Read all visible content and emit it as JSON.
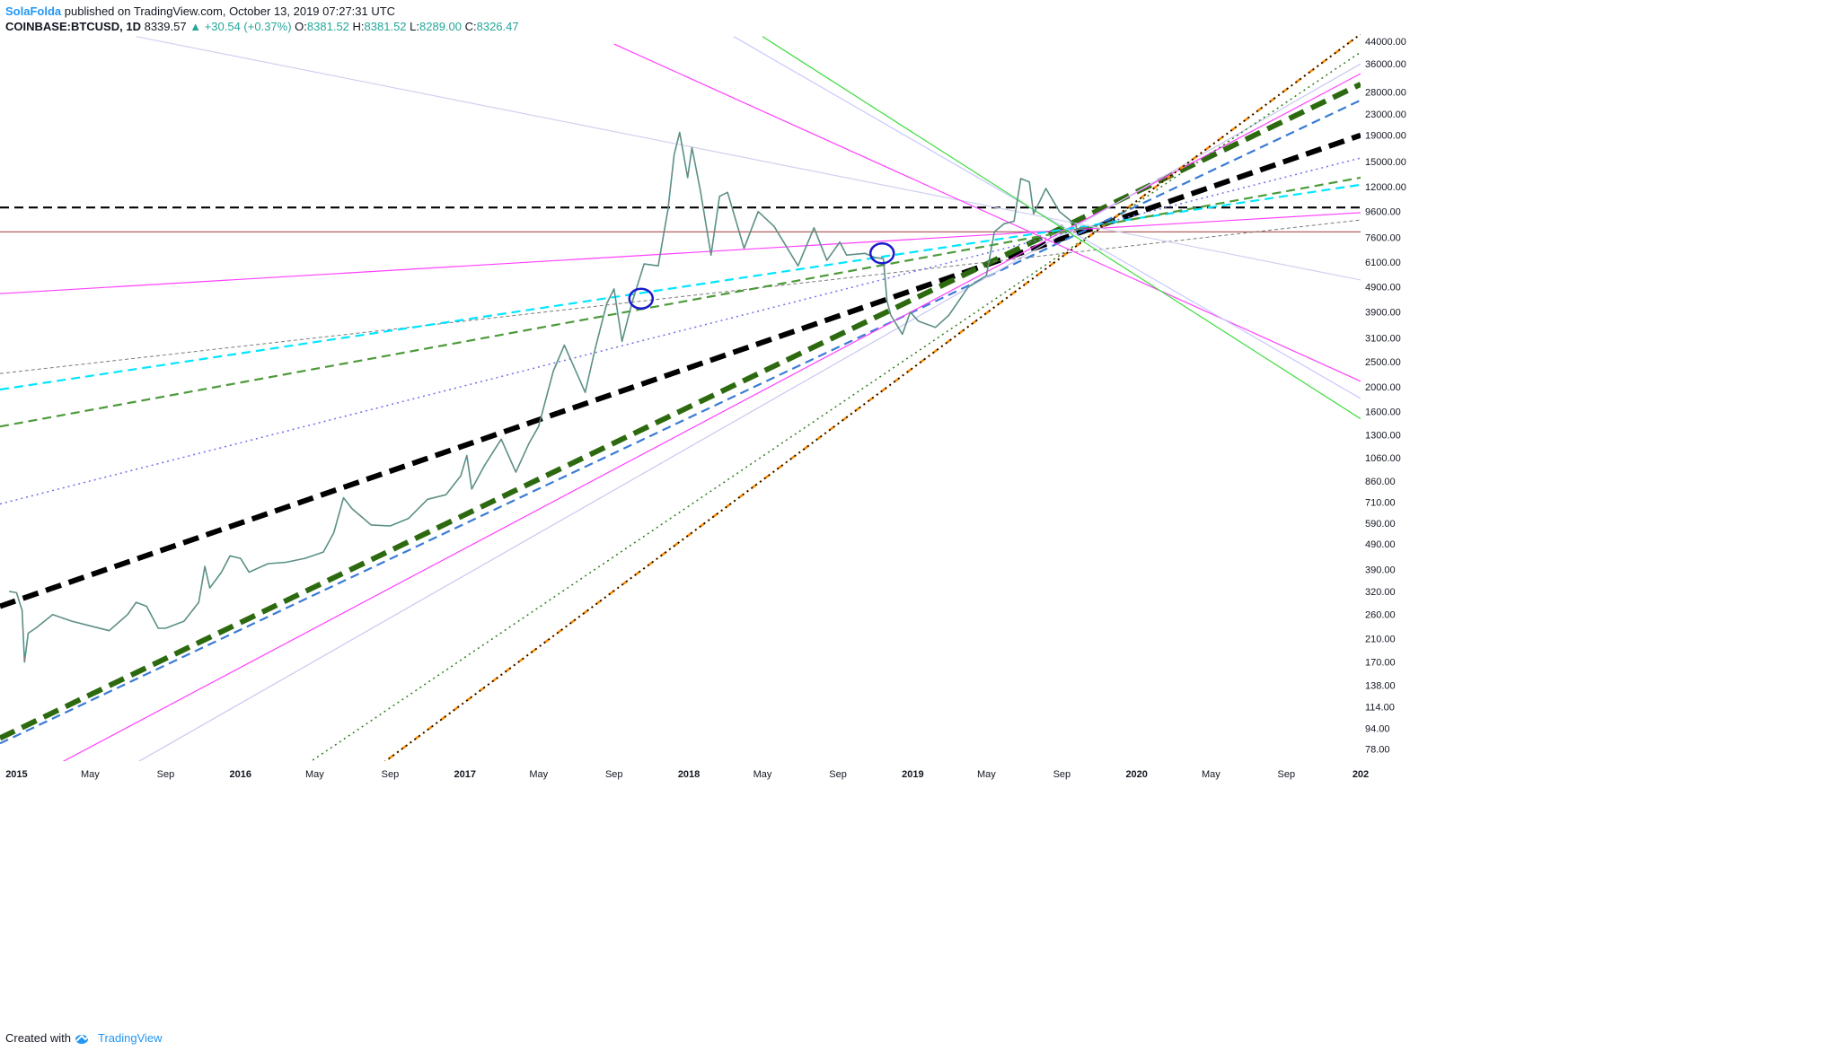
{
  "header": {
    "author": "SolaFolda",
    "published": "published on TradingView.com, October 13, 2019 07:27:31 UTC",
    "symbol": "COINBASE:BTCUSD, 1D",
    "price": "8339.57",
    "change": "▲ +30.54 (+0.37%)",
    "o_label": "O:",
    "o_val": "8381.52",
    "h_label": "H:",
    "h_val": "8381.52",
    "l_label": "L:",
    "l_val": "8289.00",
    "c_label": "C:",
    "c_val": "8326.47"
  },
  "footer": {
    "created_with": "Created with",
    "brand": "TradingView"
  },
  "chart_data": {
    "type": "line",
    "title": "",
    "y_scale": "log",
    "ylim": [
      70,
      47000
    ],
    "xlim": [
      "2014-12-05",
      "2020-12-31"
    ],
    "y_ticks": [
      "44000.00",
      "36000.00",
      "28000.00",
      "23000.00",
      "19000.00",
      "15000.00",
      "12000.00",
      "9600.00",
      "7600.00",
      "6100.00",
      "4900.00",
      "3900.00",
      "3100.00",
      "2500.00",
      "2000.00",
      "1600.00",
      "1300.00",
      "1060.00",
      "860.00",
      "710.00",
      "590.00",
      "490.00",
      "390.00",
      "320.00",
      "260.00",
      "210.00",
      "170.00",
      "138.00",
      "114.00",
      "94.00",
      "78.00"
    ],
    "x_ticks": [
      {
        "label": "2015",
        "date": "2015-01-01",
        "bold": true
      },
      {
        "label": "May",
        "date": "2015-05-01",
        "bold": false
      },
      {
        "label": "Sep",
        "date": "2015-09-01",
        "bold": false
      },
      {
        "label": "2016",
        "date": "2016-01-01",
        "bold": true
      },
      {
        "label": "May",
        "date": "2016-05-01",
        "bold": false
      },
      {
        "label": "Sep",
        "date": "2016-09-01",
        "bold": false
      },
      {
        "label": "2017",
        "date": "2017-01-01",
        "bold": true
      },
      {
        "label": "May",
        "date": "2017-05-01",
        "bold": false
      },
      {
        "label": "Sep",
        "date": "2017-09-01",
        "bold": false
      },
      {
        "label": "2018",
        "date": "2018-01-01",
        "bold": true
      },
      {
        "label": "May",
        "date": "2018-05-01",
        "bold": false
      },
      {
        "label": "Sep",
        "date": "2018-09-01",
        "bold": false
      },
      {
        "label": "2019",
        "date": "2019-01-01",
        "bold": true
      },
      {
        "label": "May",
        "date": "2019-05-01",
        "bold": false
      },
      {
        "label": "Sep",
        "date": "2019-09-01",
        "bold": false
      },
      {
        "label": "2020",
        "date": "2020-01-01",
        "bold": true
      },
      {
        "label": "May",
        "date": "2020-05-01",
        "bold": false
      },
      {
        "label": "Sep",
        "date": "2020-09-01",
        "bold": false
      },
      {
        "label": "202",
        "date": "2020-12-31",
        "bold": true
      }
    ],
    "series": [
      {
        "color": "#26a69a",
        "points": [
          [
            "2014-12-20",
            320
          ],
          [
            "2015-01-01",
            316
          ],
          [
            "2015-01-10",
            270
          ],
          [
            "2015-01-14",
            170
          ],
          [
            "2015-01-20",
            220
          ],
          [
            "2015-02-01",
            230
          ],
          [
            "2015-03-01",
            260
          ],
          [
            "2015-04-01",
            245
          ],
          [
            "2015-05-01",
            235
          ],
          [
            "2015-06-01",
            225
          ],
          [
            "2015-07-01",
            260
          ],
          [
            "2015-07-15",
            290
          ],
          [
            "2015-08-01",
            280
          ],
          [
            "2015-08-20",
            230
          ],
          [
            "2015-09-01",
            230
          ],
          [
            "2015-10-01",
            245
          ],
          [
            "2015-10-25",
            290
          ],
          [
            "2015-11-04",
            400
          ],
          [
            "2015-11-12",
            330
          ],
          [
            "2015-12-01",
            380
          ],
          [
            "2015-12-15",
            440
          ],
          [
            "2016-01-01",
            430
          ],
          [
            "2016-01-15",
            380
          ],
          [
            "2016-02-15",
            410
          ],
          [
            "2016-03-15",
            415
          ],
          [
            "2016-04-15",
            430
          ],
          [
            "2016-05-15",
            455
          ],
          [
            "2016-06-01",
            540
          ],
          [
            "2016-06-17",
            740
          ],
          [
            "2016-07-01",
            670
          ],
          [
            "2016-08-01",
            580
          ],
          [
            "2016-09-01",
            575
          ],
          [
            "2016-10-01",
            615
          ],
          [
            "2016-11-01",
            730
          ],
          [
            "2016-12-01",
            760
          ],
          [
            "2016-12-25",
            900
          ],
          [
            "2017-01-04",
            1080
          ],
          [
            "2017-01-12",
            800
          ],
          [
            "2017-02-01",
            980
          ],
          [
            "2017-03-01",
            1250
          ],
          [
            "2017-03-25",
            930
          ],
          [
            "2017-04-15",
            1200
          ],
          [
            "2017-05-01",
            1400
          ],
          [
            "2017-05-25",
            2300
          ],
          [
            "2017-06-12",
            2900
          ],
          [
            "2017-07-16",
            1900
          ],
          [
            "2017-08-01",
            2800
          ],
          [
            "2017-08-20",
            4200
          ],
          [
            "2017-09-01",
            4800
          ],
          [
            "2017-09-14",
            3000
          ],
          [
            "2017-10-01",
            4300
          ],
          [
            "2017-10-20",
            6000
          ],
          [
            "2017-11-12",
            5900
          ],
          [
            "2017-11-28",
            9800
          ],
          [
            "2017-12-08",
            16000
          ],
          [
            "2017-12-17",
            19500
          ],
          [
            "2017-12-30",
            13000
          ],
          [
            "2018-01-06",
            17000
          ],
          [
            "2018-01-20",
            11500
          ],
          [
            "2018-02-06",
            6500
          ],
          [
            "2018-02-20",
            11000
          ],
          [
            "2018-03-05",
            11400
          ],
          [
            "2018-04-01",
            6900
          ],
          [
            "2018-04-24",
            9600
          ],
          [
            "2018-05-20",
            8400
          ],
          [
            "2018-06-28",
            5900
          ],
          [
            "2018-07-24",
            8300
          ],
          [
            "2018-08-14",
            6200
          ],
          [
            "2018-09-04",
            7300
          ],
          [
            "2018-09-15",
            6500
          ],
          [
            "2018-10-15",
            6600
          ],
          [
            "2018-11-01",
            6350
          ],
          [
            "2018-11-14",
            6300
          ],
          [
            "2018-11-20",
            4300
          ],
          [
            "2018-11-26",
            3800
          ],
          [
            "2018-12-15",
            3200
          ],
          [
            "2018-12-28",
            3900
          ],
          [
            "2019-01-10",
            3600
          ],
          [
            "2019-02-07",
            3400
          ],
          [
            "2019-03-01",
            3800
          ],
          [
            "2019-04-02",
            4900
          ],
          [
            "2019-05-01",
            5400
          ],
          [
            "2019-05-14",
            8000
          ],
          [
            "2019-05-30",
            8600
          ],
          [
            "2019-06-15",
            8800
          ],
          [
            "2019-06-26",
            12900
          ],
          [
            "2019-07-10",
            12500
          ],
          [
            "2019-07-17",
            9400
          ],
          [
            "2019-08-06",
            11800
          ],
          [
            "2019-08-28",
            9600
          ],
          [
            "2019-09-24",
            8500
          ],
          [
            "2019-09-25",
            8200
          ],
          [
            "2019-10-01",
            8300
          ],
          [
            "2019-10-13",
            8330
          ]
        ]
      }
    ],
    "horizontal_lines": [
      {
        "y": 9950,
        "color": "#000000",
        "style": "dashed"
      },
      {
        "y": 8000,
        "color": "#b45f5f",
        "style": "solid"
      }
    ],
    "converging_point": {
      "x": "2019-10-13",
      "y": 8330
    },
    "trendlines": [
      {
        "color": "#000000",
        "style": "dashed-heavy",
        "from": {
          "x": "2014-12-05",
          "y": 280
        },
        "to": {
          "x": "2020-12-31",
          "y": 19000
        }
      },
      {
        "color": "#2d6a0f",
        "style": "dashed-heavy",
        "from": {
          "x": "2014-12-05",
          "y": 86
        },
        "to": {
          "x": "2020-12-31",
          "y": 30000
        }
      },
      {
        "color": "#3a7bd5",
        "style": "dashed",
        "from": {
          "x": "2014-12-05",
          "y": 82
        },
        "to": {
          "x": "2020-12-31",
          "y": 26000
        }
      },
      {
        "color": "#ff40ff",
        "style": "solid",
        "from": {
          "x": "2015-01-25",
          "y": 60
        },
        "to": {
          "x": "2020-12-31",
          "y": 33000
        }
      },
      {
        "color": "#c8c8f0",
        "style": "solid",
        "from": {
          "x": "2015-06-01",
          "y": 60
        },
        "to": {
          "x": "2020-12-31",
          "y": 36000
        }
      },
      {
        "color": "#2e7d1e",
        "style": "dotted",
        "from": {
          "x": "2016-03-15",
          "y": 60
        },
        "to": {
          "x": "2020-12-31",
          "y": 40000
        }
      },
      {
        "color": "#ff8c00",
        "style": "dash-dot",
        "from": {
          "x": "2016-07-18",
          "y": 60
        },
        "to": {
          "x": "2020-12-31",
          "y": 47000
        }
      },
      {
        "color": "#000000",
        "style": "dotted",
        "from": {
          "x": "2016-07-18",
          "y": 60
        },
        "to": {
          "x": "2020-12-31",
          "y": 47000
        }
      },
      {
        "color": "#ff40ff",
        "style": "solid",
        "from": {
          "x": "2014-12-05",
          "y": 4600
        },
        "to": {
          "x": "2020-12-31",
          "y": 9500
        }
      },
      {
        "color": "#7a7a7a",
        "style": "dashed-fine",
        "from": {
          "x": "2014-12-05",
          "y": 2250
        },
        "to": {
          "x": "2020-12-31",
          "y": 8900
        }
      },
      {
        "color": "#00e5ff",
        "style": "dashed",
        "from": {
          "x": "2014-12-05",
          "y": 1950
        },
        "to": {
          "x": "2020-12-31",
          "y": 12200
        }
      },
      {
        "color": "#4c9a3a",
        "style": "dashed",
        "from": {
          "x": "2014-12-05",
          "y": 1400
        },
        "to": {
          "x": "2020-12-31",
          "y": 13000
        }
      },
      {
        "color": "#7070ee",
        "style": "dotted",
        "from": {
          "x": "2014-12-05",
          "y": 700
        },
        "to": {
          "x": "2020-12-31",
          "y": 15500
        }
      },
      {
        "color": "#d0d0f0",
        "style": "solid",
        "from": {
          "x": "2015-07-15",
          "y": 46000
        },
        "to": {
          "x": "2020-12-31",
          "y": 5200
        }
      },
      {
        "color": "#ff40ff",
        "style": "solid",
        "from": {
          "x": "2017-09-01",
          "y": 43000
        },
        "to": {
          "x": "2020-12-31",
          "y": 2100
        }
      },
      {
        "color": "#c8c8ff",
        "style": "solid",
        "from": {
          "x": "2018-03-15",
          "y": 46000
        },
        "to": {
          "x": "2020-12-31",
          "y": 1800
        }
      },
      {
        "color": "#3cdc3c",
        "style": "solid",
        "from": {
          "x": "2018-05-01",
          "y": 46000
        },
        "to": {
          "x": "2020-12-31",
          "y": 1500
        }
      }
    ],
    "ellipse_markers": [
      {
        "color": "#1a1acc",
        "x": "2017-10-15",
        "y": 4400
      },
      {
        "color": "#1a1acc",
        "x": "2018-11-12",
        "y": 6600
      }
    ]
  }
}
